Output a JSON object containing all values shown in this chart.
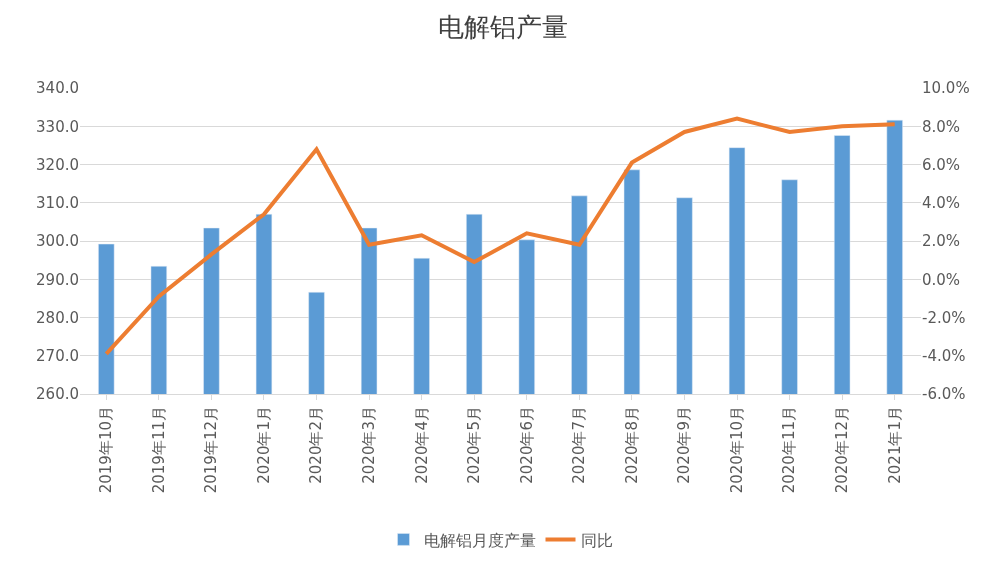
{
  "chart_data": {
    "type": "bar",
    "title": "电解铝产量",
    "categories": [
      "2019年10月",
      "2019年11月",
      "2019年12月",
      "2020年1月",
      "2020年2月",
      "2020年3月",
      "2020年4月",
      "2020年5月",
      "2020年6月",
      "2020年7月",
      "2020年8月",
      "2020年9月",
      "2020年10月",
      "2020年11月",
      "2020年12月",
      "2021年1月"
    ],
    "series": [
      {
        "name": "电解铝月度产量",
        "color": "#5b9bd5",
        "values": [
          299.2,
          293.4,
          303.4,
          307.0,
          286.6,
          303.4,
          295.5,
          307.0,
          300.3,
          311.8,
          318.6,
          311.3,
          324.4,
          316.0,
          327.6,
          331.6
        ]
      },
      {
        "name": "同比",
        "type": "line",
        "axis": "y2",
        "color": "#ed7d31",
        "values": [
          -3.9,
          -0.9,
          1.3,
          3.4,
          6.8,
          1.8,
          2.3,
          0.9,
          2.4,
          1.8,
          6.1,
          7.7,
          8.4,
          7.7,
          8.0,
          8.1
        ]
      }
    ],
    "ylim": [
      260,
      340
    ],
    "yticks": [
      {
        "value": 260,
        "label": "260.0"
      },
      {
        "value": 270,
        "label": "270.0"
      },
      {
        "value": 280,
        "label": "280.0"
      },
      {
        "value": 290,
        "label": "290.0"
      },
      {
        "value": 300,
        "label": "300.0"
      },
      {
        "value": 310,
        "label": "310.0"
      },
      {
        "value": 320,
        "label": "320.0"
      },
      {
        "value": 330,
        "label": "330.0"
      },
      {
        "value": 340,
        "label": "340.0"
      }
    ],
    "y2lim": [
      -6,
      10
    ],
    "y2ticks": [
      {
        "value": -6,
        "label": "-6.0%"
      },
      {
        "value": -4,
        "label": "-4.0%"
      },
      {
        "value": -2,
        "label": "-2.0%"
      },
      {
        "value": 0,
        "label": "0.0%"
      },
      {
        "value": 2,
        "label": "2.0%"
      },
      {
        "value": 4,
        "label": "4.0%"
      },
      {
        "value": 6,
        "label": "6.0%"
      },
      {
        "value": 8,
        "label": "8.0%"
      },
      {
        "value": 10,
        "label": "10.0%"
      }
    ],
    "grid": "y",
    "legend": "bottom",
    "marker": "none",
    "line_style": "solid"
  }
}
